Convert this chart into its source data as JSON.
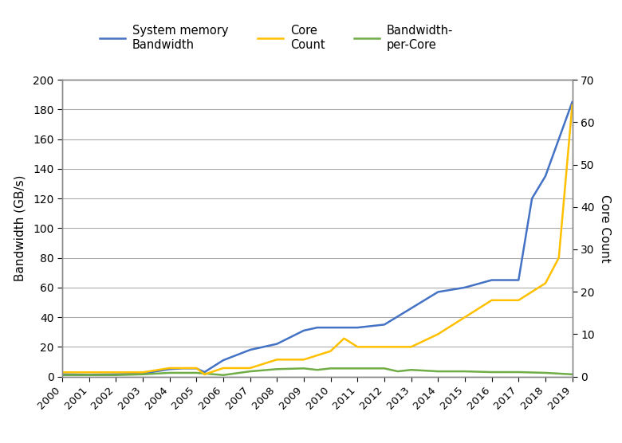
{
  "bw_years": [
    2000,
    2001,
    2002,
    2003,
    2004,
    2004.5,
    2005,
    2005.3,
    2006,
    2007,
    2008,
    2009,
    2009.5,
    2010,
    2011,
    2012,
    2013,
    2014,
    2015,
    2016,
    2017,
    2017.5,
    2018,
    2019
  ],
  "bw_vals": [
    1.5,
    1.2,
    1.5,
    2.0,
    5.0,
    5.5,
    5.5,
    3.0,
    11.0,
    18.0,
    22.0,
    31.0,
    33.0,
    33.0,
    33.0,
    35.0,
    46.0,
    57.0,
    60.0,
    65.0,
    65.0,
    120.0,
    135.0,
    185.0
  ],
  "cc_years": [
    2000,
    2001,
    2002,
    2003,
    2004,
    2005,
    2005.3,
    2006,
    2007,
    2008,
    2009,
    2010,
    2010.5,
    2011,
    2012,
    2013,
    2014,
    2015,
    2016,
    2017,
    2018,
    2018.5,
    2019
  ],
  "cc_vals": [
    1,
    1,
    1,
    1,
    2,
    2,
    0.5,
    2,
    2,
    4,
    4,
    6,
    9,
    7,
    7,
    7,
    10,
    14,
    18,
    18,
    22,
    28,
    64
  ],
  "bpc_years": [
    2000,
    2001,
    2002,
    2003,
    2004,
    2005,
    2006,
    2007,
    2008,
    2009,
    2009.5,
    2010,
    2011,
    2012,
    2012.5,
    2013,
    2014,
    2015,
    2016,
    2017,
    2018,
    2019
  ],
  "bpc_vals": [
    1.0,
    1.0,
    1.0,
    1.5,
    2.5,
    2.5,
    1.0,
    3.5,
    5.0,
    5.5,
    4.5,
    5.5,
    5.5,
    5.5,
    3.5,
    4.5,
    3.5,
    3.5,
    3.0,
    3.0,
    2.5,
    1.5
  ],
  "color_bandwidth": "#4472c4",
  "color_core_count": "#ffc000",
  "color_bpc": "#70ad47",
  "ylabel_left": "Bandwidth (GB/s)",
  "ylabel_right": "Core Count",
  "ylim_left": [
    0,
    200
  ],
  "ylim_right": [
    0,
    70
  ],
  "yticks_left": [
    0,
    20,
    40,
    60,
    80,
    100,
    120,
    140,
    160,
    180,
    200
  ],
  "yticks_right": [
    0,
    10,
    20,
    30,
    40,
    50,
    60,
    70
  ],
  "xtick_years": [
    2000,
    2001,
    2002,
    2003,
    2004,
    2005,
    2006,
    2007,
    2008,
    2009,
    2010,
    2011,
    2012,
    2013,
    2014,
    2015,
    2016,
    2017,
    2018,
    2019
  ],
  "legend_labels": [
    "System memory\nBandwidth",
    "Core\nCount",
    "Bandwidth-\nper-Core"
  ],
  "background_color": "#ffffff",
  "line_width": 1.8,
  "grid_color": "#aaaaaa",
  "spine_color": "#888888"
}
